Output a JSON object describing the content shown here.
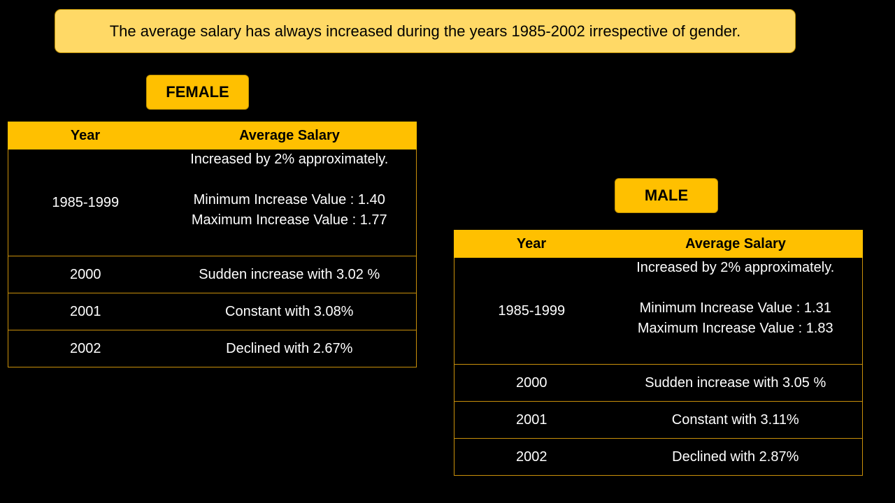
{
  "banner": {
    "text": "The average salary has always increased during the years 1985-2002 irrespective of gender."
  },
  "female": {
    "label": "FEMALE",
    "headers": {
      "year": "Year",
      "salary": "Average Salary"
    },
    "rows": [
      {
        "year": "1985-1999",
        "line1": "Increased by 2% approximately.",
        "line2": "Minimum Increase Value : 1.40",
        "line3": "Maximum Increase Value : 1.77"
      },
      {
        "year": "2000",
        "detail": "Sudden increase with 3.02 %"
      },
      {
        "year": "2001",
        "detail": "Constant with 3.08%"
      },
      {
        "year": "2002",
        "detail": "Declined with 2.67%"
      }
    ]
  },
  "male": {
    "label": "MALE",
    "headers": {
      "year": "Year",
      "salary": "Average Salary"
    },
    "rows": [
      {
        "year": "1985-1999",
        "line1": "Increased by 2% approximately.",
        "line2": "Minimum Increase Value : 1.31",
        "line3": "Maximum Increase Value : 1.83"
      },
      {
        "year": "2000",
        "detail": "Sudden increase with 3.05 %"
      },
      {
        "year": "2001",
        "detail": "Constant with 3.11%"
      },
      {
        "year": "2002",
        "detail": "Declined with 2.87%"
      }
    ]
  },
  "colors": {
    "background": "#000000",
    "banner_fill": "#FFD966",
    "header_fill": "#FFC000",
    "border": "#C9900A",
    "text": "#FFFFFF"
  }
}
